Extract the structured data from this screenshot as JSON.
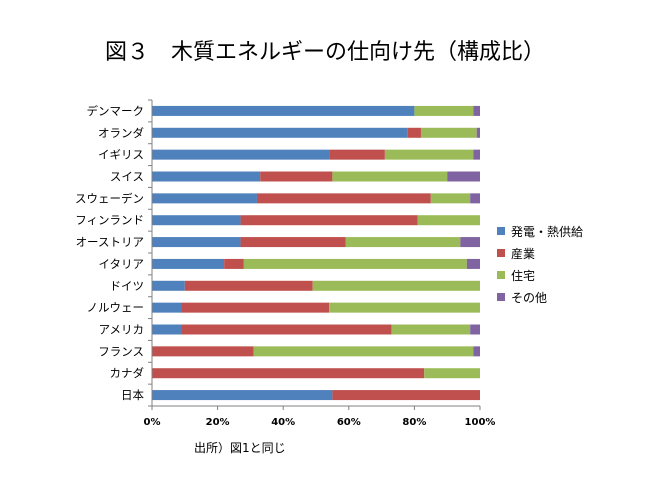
{
  "title": "図３　木質エネルギーの仕向け先（構成比）",
  "source_note": "出所）図1と同じ",
  "colors": {
    "series": [
      "#4F81BD",
      "#C0504D",
      "#9BBB59",
      "#8064A2"
    ],
    "axis": "#808080"
  },
  "chart_data": {
    "type": "bar",
    "orientation": "horizontal",
    "stacked": "percent",
    "categories": [
      "デンマーク",
      "オランダ",
      "イギリス",
      "スイス",
      "スウェーデン",
      "フィンランド",
      "オーストリア",
      "イタリア",
      "ドイツ",
      "ノルウェー",
      "アメリカ",
      "フランス",
      "カナダ",
      "日本"
    ],
    "series": [
      {
        "name": "発電・熱供給",
        "values": [
          80,
          78,
          54,
          33,
          32,
          27,
          27,
          22,
          10,
          9,
          9,
          0,
          0,
          55
        ]
      },
      {
        "name": "産業",
        "values": [
          0,
          4,
          17,
          22,
          53,
          54,
          32,
          6,
          39,
          45,
          64,
          31,
          83,
          45
        ]
      },
      {
        "name": "住宅",
        "values": [
          18,
          17,
          27,
          35,
          12,
          19,
          35,
          68,
          51,
          46,
          24,
          67,
          17,
          0
        ]
      },
      {
        "name": "その他",
        "values": [
          2,
          1,
          2,
          10,
          3,
          0,
          6,
          4,
          0,
          0,
          3,
          2,
          0,
          0
        ]
      }
    ],
    "xticks": [
      "0%",
      "20%",
      "40%",
      "60%",
      "80%",
      "100%"
    ],
    "xlim": [
      0,
      100
    ],
    "grid": false,
    "legend": "right"
  }
}
